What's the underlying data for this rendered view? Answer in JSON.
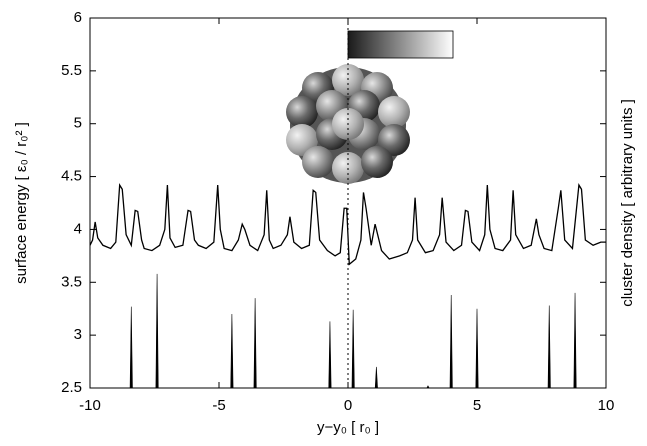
{
  "chart_data": {
    "type": "line",
    "xlabel": "y−y₀ [ r₀ ]",
    "ylabel": "surface energy [ ε₀ / r₀² ]",
    "y2label": "cluster density [ arbitrary units ]",
    "xlim": [
      -10,
      10
    ],
    "ylim": [
      2.5,
      6
    ],
    "y2lim": [
      2.5,
      6
    ],
    "xticks": [
      -10,
      -5,
      0,
      5,
      10
    ],
    "yticks": [
      2.5,
      3,
      3.5,
      4,
      4.5,
      5,
      5.5,
      6
    ],
    "reference_line_x": 0,
    "series": [
      {
        "color": "#000000",
        "x": [
          -10,
          -9.9,
          -9.8,
          -9.7,
          -9.5,
          -9.2,
          -9.0,
          -8.85,
          -8.75,
          -8.6,
          -8.4,
          -8.25,
          -8.15,
          -8.0,
          -7.9,
          -7.6,
          -7.3,
          -7.1,
          -7.0,
          -6.9,
          -6.7,
          -6.4,
          -6.2,
          -6.1,
          -5.95,
          -5.8,
          -5.5,
          -5.2,
          -5.05,
          -4.95,
          -4.8,
          -4.5,
          -4.25,
          -4.1,
          -4.0,
          -3.8,
          -3.5,
          -3.25,
          -3.15,
          -3.05,
          -2.9,
          -2.6,
          -2.35,
          -2.25,
          -2.1,
          -1.8,
          -1.5,
          -1.35,
          -1.25,
          -1.1,
          -0.8,
          -0.5,
          -0.3,
          -0.15,
          -0.05,
          0.05,
          0.3,
          0.5,
          0.6,
          0.7,
          0.9,
          1.05,
          1.15,
          1.3,
          1.6,
          2.0,
          2.3,
          2.5,
          2.6,
          2.7,
          3.0,
          3.3,
          3.55,
          3.65,
          3.8,
          4.1,
          4.4,
          4.55,
          4.65,
          4.8,
          5.1,
          5.3,
          5.4,
          5.5,
          5.7,
          6.0,
          6.3,
          6.4,
          6.5,
          6.8,
          7.1,
          7.3,
          7.4,
          7.6,
          7.9,
          8.15,
          8.25,
          8.4,
          8.7,
          8.95,
          9.05,
          9.2,
          9.5,
          9.8,
          10
        ],
        "values": [
          3.85,
          3.9,
          4.07,
          3.92,
          3.85,
          3.82,
          3.88,
          4.42,
          4.38,
          3.95,
          3.85,
          4.18,
          4.17,
          3.9,
          3.82,
          3.8,
          3.85,
          4.0,
          4.42,
          3.92,
          3.83,
          3.85,
          4.18,
          4.17,
          3.9,
          3.85,
          3.82,
          3.88,
          4.42,
          4.0,
          3.82,
          3.8,
          3.9,
          4.05,
          4.0,
          3.85,
          3.8,
          3.95,
          4.37,
          3.9,
          3.82,
          3.85,
          3.95,
          4.12,
          3.88,
          3.82,
          3.85,
          4.37,
          4.35,
          3.9,
          3.8,
          3.75,
          3.78,
          4.2,
          4.2,
          3.67,
          3.72,
          3.9,
          4.35,
          4.2,
          3.85,
          4.05,
          3.95,
          3.8,
          3.72,
          3.75,
          3.78,
          3.9,
          4.3,
          3.9,
          3.78,
          3.8,
          3.95,
          4.3,
          3.88,
          3.8,
          3.85,
          4.18,
          4.17,
          3.88,
          3.8,
          3.95,
          4.42,
          4.0,
          3.82,
          3.8,
          3.9,
          4.37,
          3.95,
          3.82,
          3.85,
          4.1,
          3.95,
          3.82,
          3.8,
          4.2,
          4.37,
          3.9,
          3.82,
          4.42,
          4.38,
          3.9,
          3.85,
          3.88,
          3.88
        ]
      },
      {
        "color": "#000000",
        "axis": "y2",
        "style": "spikes",
        "x": [
          -8.4,
          -7.4,
          -4.5,
          -3.6,
          -0.7,
          0.2,
          1.1,
          3.1,
          4.0,
          5.0,
          7.8,
          8.8
        ],
        "values": [
          3.27,
          3.58,
          3.2,
          3.35,
          3.13,
          3.24,
          2.7,
          2.52,
          3.38,
          3.25,
          3.28,
          3.4
        ]
      }
    ]
  }
}
